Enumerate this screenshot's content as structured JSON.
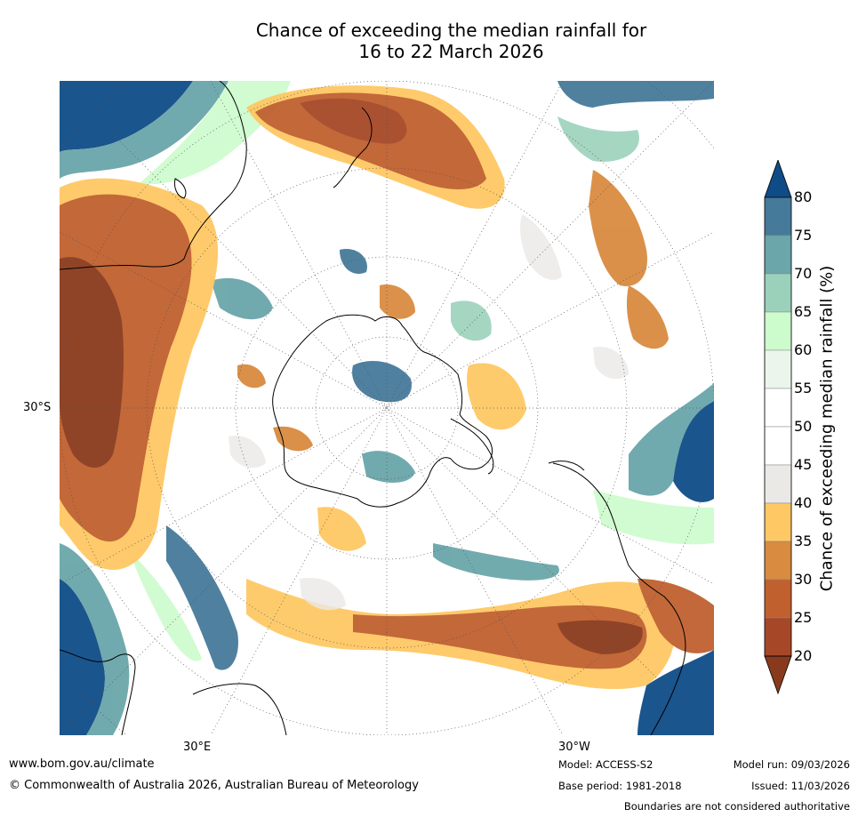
{
  "title": {
    "line1": "Chance of exceeding the median rainfall for",
    "line2": "16 to 22 March 2026"
  },
  "axis_labels": {
    "lat_30s": "30°S",
    "lon_30e": "30°E",
    "lon_30w": "30°W"
  },
  "colorbar": {
    "label": "Chance of exceeding median rainfall (%)",
    "ticks": [
      "80",
      "75",
      "70",
      "65",
      "60",
      "55",
      "50",
      "45",
      "40",
      "35",
      "30",
      "25",
      "20"
    ],
    "colors_top_to_bottom": [
      "#0f4c87",
      "#467a9a",
      "#6aa6aa",
      "#9bd1bb",
      "#ccfbcc",
      "#ecf5ec",
      "#ffffff",
      "#ffffff",
      "#ebe9e6",
      "#fec864",
      "#d98b3f",
      "#c0602f",
      "#a64828",
      "#8a3a1c"
    ]
  },
  "legend_bins": [
    {
      "range": "> 80",
      "color": "#0f4c87"
    },
    {
      "range": "75-80",
      "color": "#467a9a"
    },
    {
      "range": "70-75",
      "color": "#6aa6aa"
    },
    {
      "range": "65-70",
      "color": "#9bd1bb"
    },
    {
      "range": "60-65",
      "color": "#ccfbcc"
    },
    {
      "range": "55-60",
      "color": "#ecf5ec"
    },
    {
      "range": "45-55",
      "color": "#ffffff"
    },
    {
      "range": "40-45",
      "color": "#ebe9e6"
    },
    {
      "range": "35-40",
      "color": "#fec864"
    },
    {
      "range": "30-35",
      "color": "#d98b3f"
    },
    {
      "range": "25-30",
      "color": "#c0602f"
    },
    {
      "range": "20-25",
      "color": "#a64828"
    },
    {
      "range": "< 20",
      "color": "#8a3a1c"
    }
  ],
  "footer": {
    "website": "www.bom.gov.au/climate",
    "copyright": "© Commonwealth of Australia 2026, Australian Bureau of Meteorology",
    "model": "Model: ACCESS-S2",
    "base_period": "Base period: 1981-2018",
    "model_run": "Model run: 09/03/2026",
    "issued": "Issued: 11/03/2026",
    "disclaimer": "Boundaries are not considered authoritative"
  }
}
